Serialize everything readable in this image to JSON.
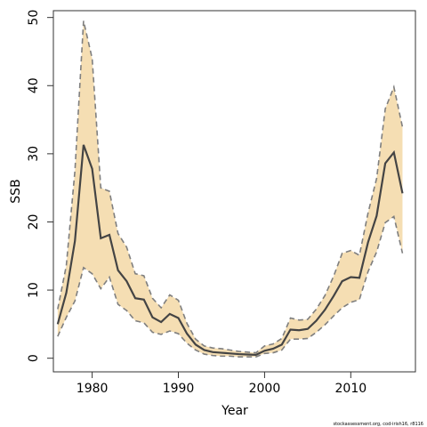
{
  "chart_data": {
    "type": "line",
    "xlabel": "Year",
    "ylabel": "SSB",
    "xlim": [
      1975.5,
      2017.5
    ],
    "ylim": [
      -2,
      51
    ],
    "x_ticks": [
      1980,
      1990,
      2000,
      2010
    ],
    "y_ticks": [
      0,
      10,
      20,
      30,
      40,
      50
    ],
    "grid": false,
    "legend": "none",
    "colors": {
      "band_fill": "#f5deb3",
      "band_edge": "#7f7f7f",
      "line": "#444444",
      "axis": "#333333"
    },
    "x": [
      1976,
      1977,
      1978,
      1979,
      1980,
      1981,
      1982,
      1983,
      1984,
      1985,
      1986,
      1987,
      1988,
      1989,
      1990,
      1991,
      1992,
      1993,
      1994,
      1995,
      1996,
      1997,
      1998,
      1999,
      2000,
      2001,
      2002,
      2003,
      2004,
      2005,
      2006,
      2007,
      2008,
      2009,
      2010,
      2011,
      2012,
      2013,
      2014,
      2015,
      2016
    ],
    "series": [
      {
        "values": [
          5.0,
          9.6,
          17.2,
          31.3,
          27.8,
          17.6,
          18.1,
          12.9,
          11.3,
          8.8,
          8.6,
          6.0,
          5.3,
          6.5,
          5.9,
          3.6,
          2.0,
          1.2,
          0.9,
          0.8,
          0.7,
          0.6,
          0.55,
          0.5,
          1.1,
          1.4,
          2.0,
          4.2,
          4.1,
          4.3,
          5.5,
          7.1,
          9.1,
          11.3,
          11.9,
          11.8,
          17.0,
          20.9,
          28.6,
          30.2,
          24.2
        ]
      },
      {
        "values": [
          7.2,
          13.6,
          27.5,
          49.5,
          44.0,
          25.0,
          24.5,
          18.3,
          16.3,
          12.4,
          12.1,
          8.8,
          7.4,
          9.3,
          8.5,
          5.1,
          2.8,
          1.8,
          1.5,
          1.4,
          1.2,
          1.0,
          0.9,
          0.8,
          1.8,
          2.1,
          2.9,
          5.9,
          5.6,
          5.7,
          7.2,
          9.2,
          12.0,
          15.4,
          15.8,
          15.1,
          21.3,
          26.4,
          36.6,
          39.8,
          33.9
        ]
      },
      {
        "values": [
          3.2,
          6.0,
          8.4,
          13.3,
          12.4,
          10.2,
          11.9,
          7.9,
          7.0,
          5.5,
          5.2,
          3.8,
          3.5,
          4.0,
          3.6,
          2.2,
          1.2,
          0.6,
          0.4,
          0.3,
          0.3,
          0.2,
          0.2,
          0.2,
          0.7,
          0.8,
          1.2,
          2.8,
          2.8,
          2.9,
          3.8,
          4.9,
          6.2,
          7.4,
          8.2,
          8.6,
          12.7,
          15.6,
          19.9,
          20.8,
          15.4
        ]
      }
    ]
  },
  "footnote": "stockassessment.org, cod-irish16, r8116"
}
